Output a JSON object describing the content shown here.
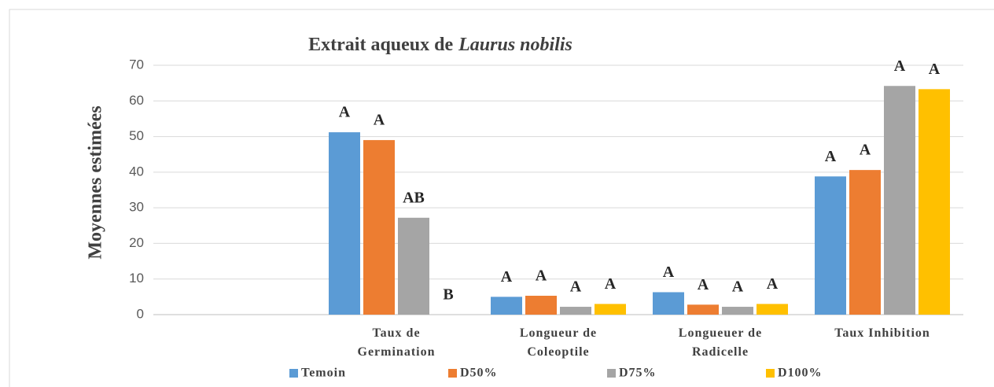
{
  "chart_data": {
    "type": "bar",
    "title": {
      "text": "Extrait aqueux de",
      "italic": "Laurus nobilis"
    },
    "y_label": "Moyennes estimées",
    "categories": [
      null,
      "Taux de Germination",
      "Longueur de Coleoptile",
      "Longueuer de Radicelle",
      "Taux Inhibition"
    ],
    "series": [
      {
        "name": "Temoin",
        "color": "#5b9bd5",
        "values": [
          null,
          51.2,
          5,
          6.3,
          38.8
        ],
        "significance": [
          null,
          "A",
          "A",
          "A",
          "A"
        ]
      },
      {
        "name": "D50%",
        "color": "#ed7d31",
        "values": [
          null,
          49,
          5.3,
          2.8,
          40.6
        ],
        "significance": [
          null,
          "A",
          "A",
          "A",
          "A"
        ]
      },
      {
        "name": "D75%",
        "color": "#a5a5a5",
        "values": [
          null,
          27.2,
          2.2,
          2.2,
          64.2
        ],
        "significance": [
          null,
          "AB",
          "A",
          "A",
          "A"
        ]
      },
      {
        "name": "D100%",
        "color": "#ffc000",
        "values": [
          null,
          0,
          3,
          3,
          63.3
        ],
        "significance": [
          null,
          "B",
          "A",
          "A",
          "A"
        ]
      }
    ],
    "ylim": [
      0,
      70
    ],
    "yticks": [
      0,
      10,
      20,
      30,
      40,
      50,
      60,
      70
    ],
    "grid": true,
    "legend": "bottom"
  }
}
